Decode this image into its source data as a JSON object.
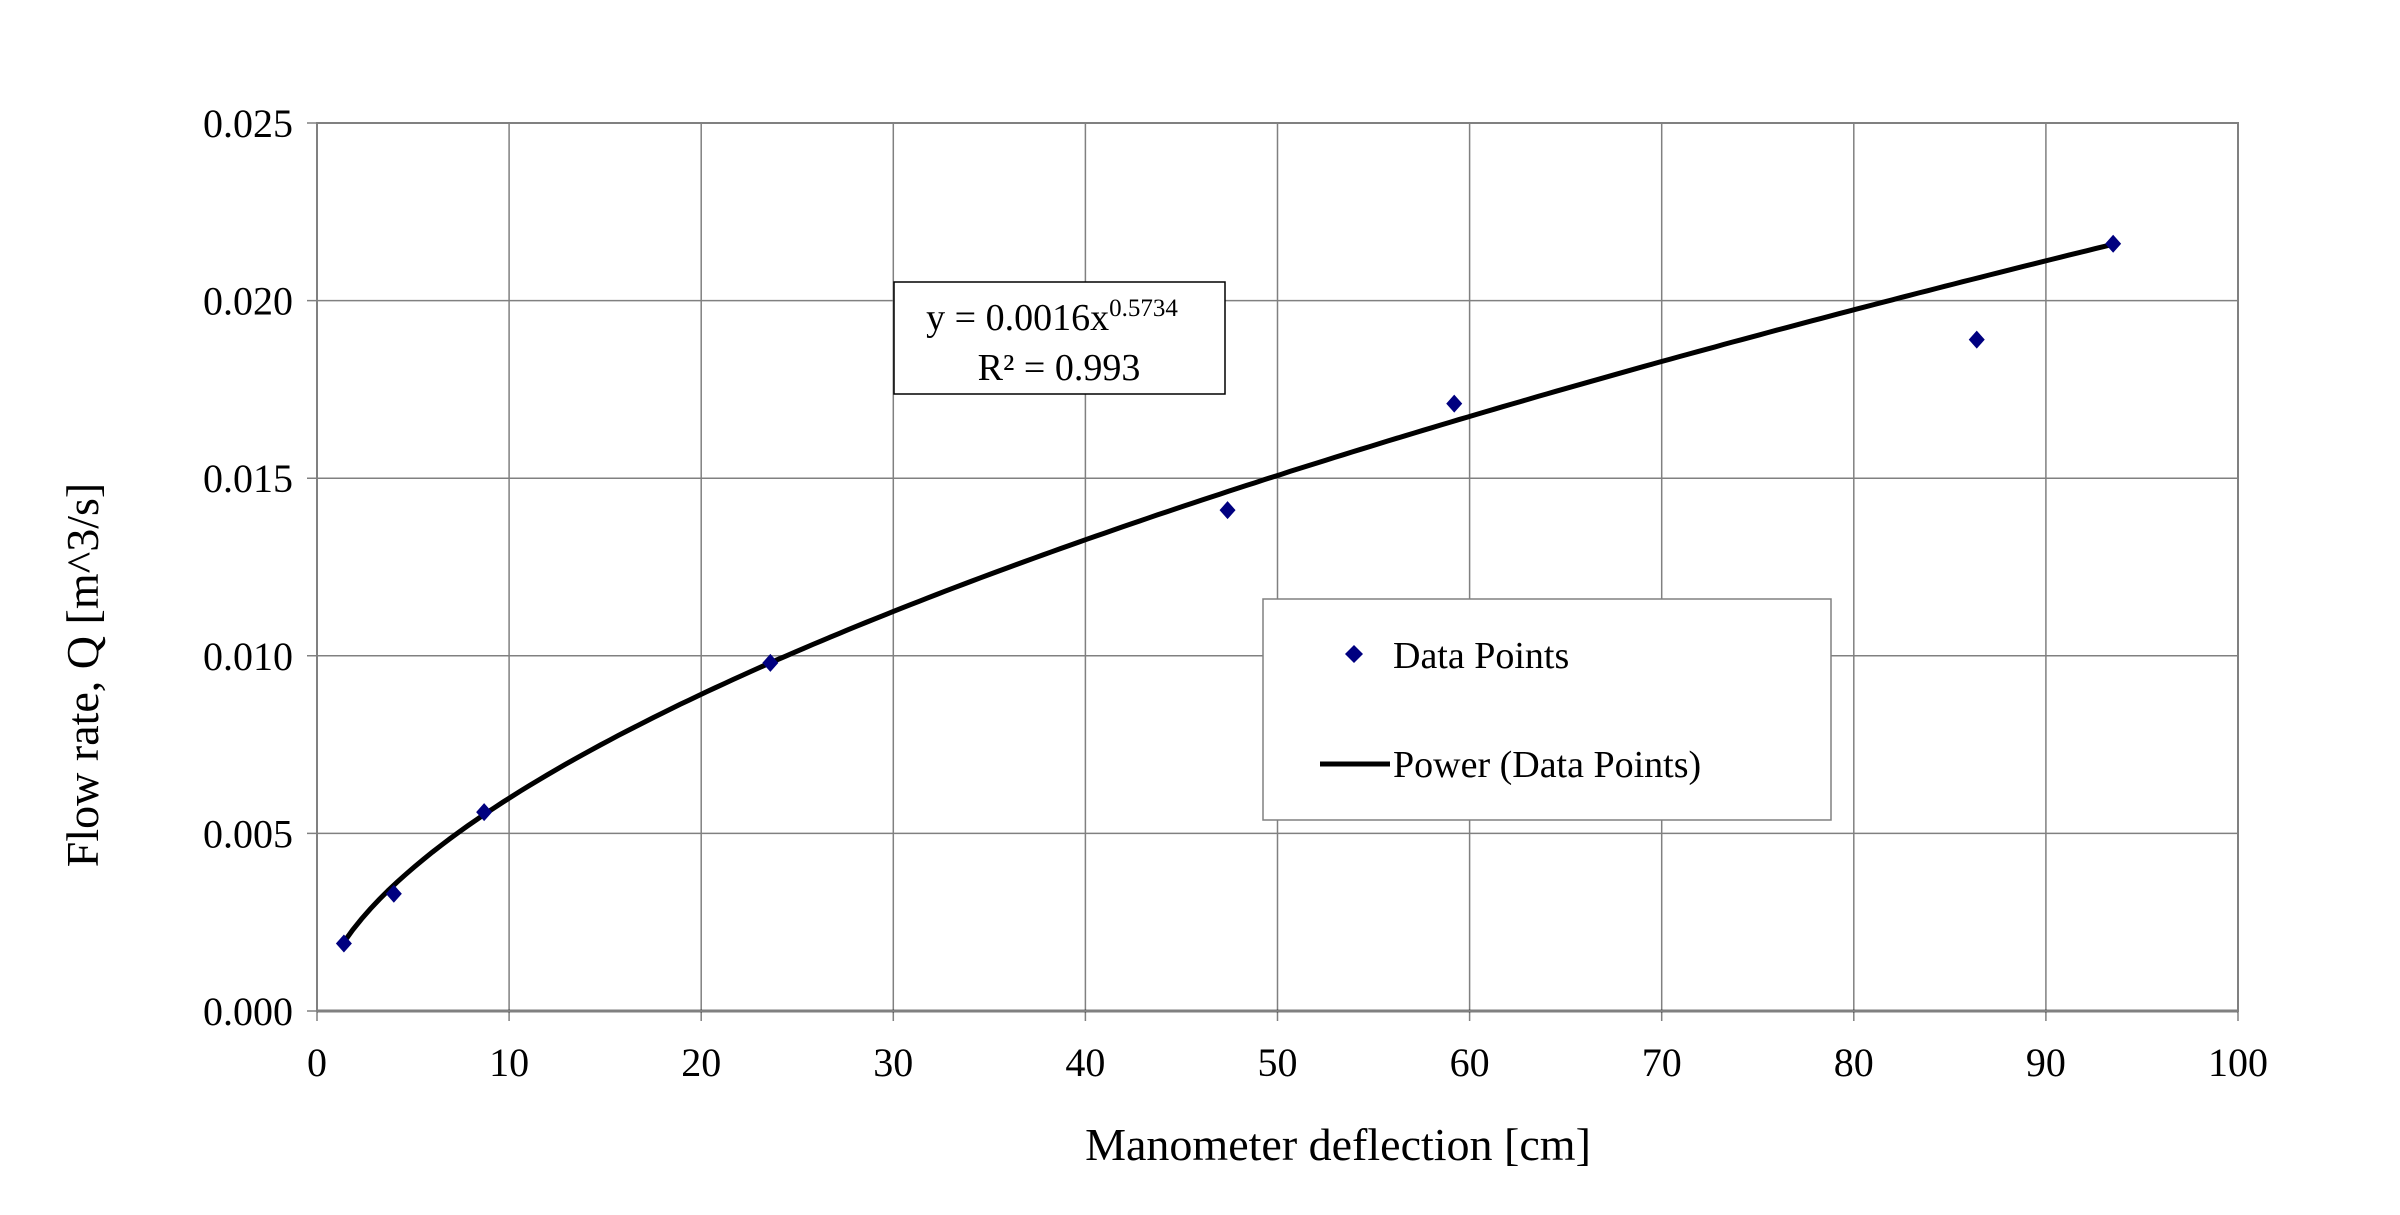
{
  "chart_data": {
    "type": "scatter",
    "xlabel": "Manometer deflection [cm]",
    "ylabel": "Flow rate, Q [m^3/s]",
    "xlim": [
      0,
      100
    ],
    "ylim": [
      0,
      0.025
    ],
    "xticks": [
      "0",
      "10",
      "20",
      "30",
      "40",
      "50",
      "60",
      "70",
      "80",
      "90",
      "100"
    ],
    "yticks": [
      "0.000",
      "0.005",
      "0.010",
      "0.015",
      "0.020",
      "0.025"
    ],
    "grid": true,
    "legend_position": "center-right",
    "series": [
      {
        "name": "Data Points",
        "marker": "diamond",
        "color": "#000080",
        "x": [
          1.4,
          4.0,
          8.7,
          23.6,
          47.4,
          59.2,
          86.4,
          93.5
        ],
        "y": [
          0.0019,
          0.0033,
          0.0056,
          0.0098,
          0.0141,
          0.0171,
          0.0189,
          0.0216
        ]
      },
      {
        "name": "Power (Data Points)",
        "type": "trendline",
        "color": "#000000",
        "model": "power",
        "coefficient": 0.0016,
        "exponent": 0.5734,
        "x_range": [
          1.4,
          93.5
        ]
      }
    ],
    "annotation": {
      "equation_prefix": "y = 0.0016x",
      "equation_exponent": "0.5734",
      "r_squared": "R² = 0.993"
    }
  }
}
